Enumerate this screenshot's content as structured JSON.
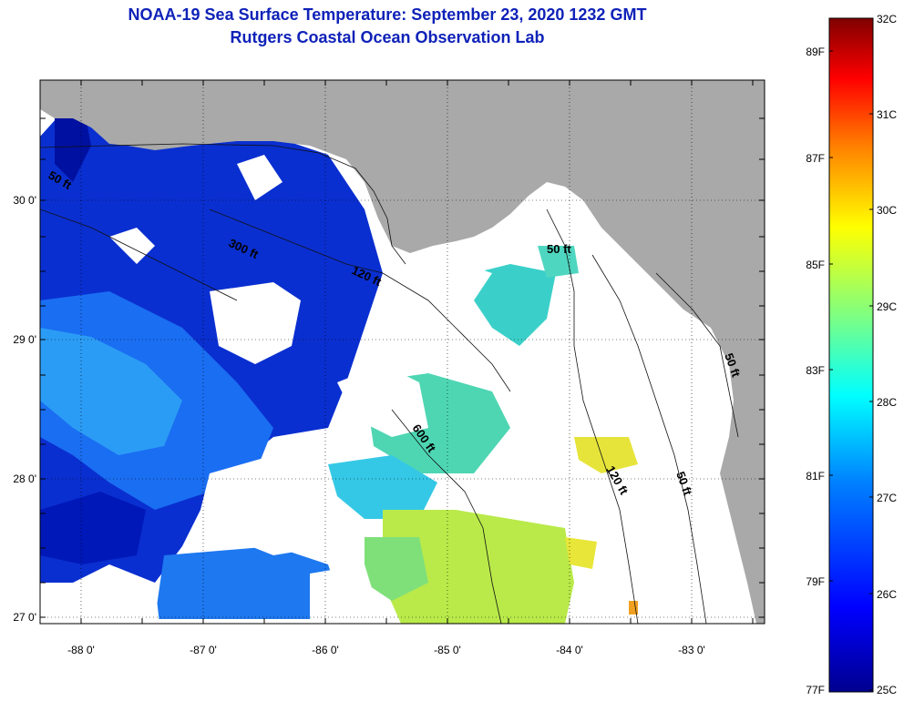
{
  "title_line1": "NOAA-19 Sea Surface Temperature:  September 23, 2020 1232 GMT",
  "title_line2": "Rutgers Coastal Ocean Observation Lab",
  "map": {
    "land_color": "#a9a9a9",
    "cloud_color": "#ffffff",
    "lon_ticks": [
      "-88 0'",
      "-87 0'",
      "-86 0'",
      "-85 0'",
      "-84 0'",
      "-83 0'"
    ],
    "lat_ticks": [
      "30 0'",
      "29 0'",
      "28 0'",
      "27 0'"
    ],
    "contour_labels": [
      {
        "text": "50 ft",
        "name": "contour-label-50ft-west"
      },
      {
        "text": "300 ft",
        "name": "contour-label-300ft"
      },
      {
        "text": "120 ft",
        "name": "contour-label-120ft-north"
      },
      {
        "text": "50 ft",
        "name": "contour-label-50ft-bigbend"
      },
      {
        "text": "600 ft",
        "name": "contour-label-600ft"
      },
      {
        "text": "120 ft",
        "name": "contour-label-120ft-shelf"
      },
      {
        "text": "50 ft",
        "name": "contour-label-50ft-shelf"
      },
      {
        "text": "50 ft",
        "name": "contour-label-50ft-coast"
      }
    ]
  },
  "colorbar": {
    "celsius_labels": [
      "32C",
      "31C",
      "30C",
      "29C",
      "28C",
      "27C",
      "26C",
      "25C"
    ],
    "fahrenheit_labels": [
      "89F",
      "87F",
      "85F",
      "83F",
      "81F",
      "79F",
      "77F"
    ],
    "colors": [
      "#00008f",
      "#0000ff",
      "#0080ff",
      "#00ffff",
      "#80ff80",
      "#ffff00",
      "#ff8000",
      "#ff0000",
      "#800000"
    ]
  }
}
